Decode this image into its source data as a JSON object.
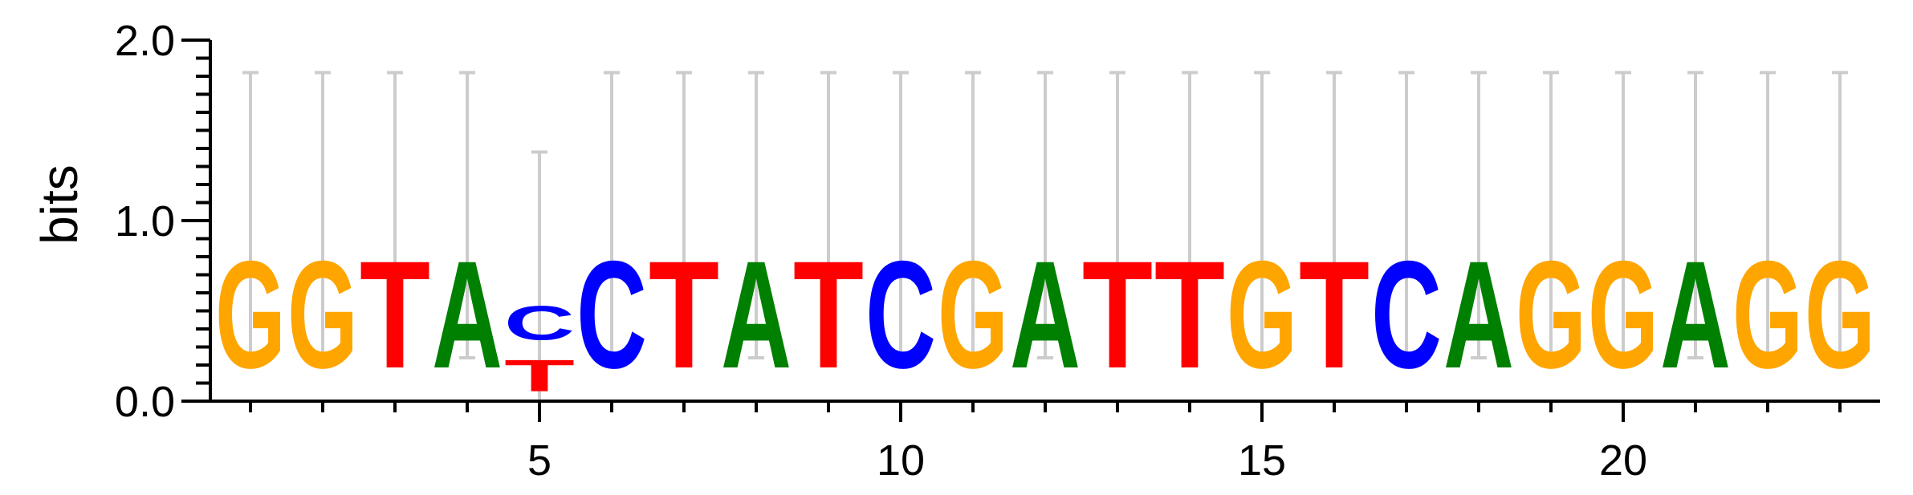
{
  "chart_data": {
    "type": "sequence-logo",
    "ylabel": "bits",
    "ylim": [
      0,
      2.0
    ],
    "y_ticks": [
      "0.0",
      "1.0",
      "2.0"
    ],
    "x_ticks": [
      5,
      10,
      15,
      20
    ],
    "colors": {
      "A": "#008000",
      "C": "#0000ff",
      "G": "#ffa500",
      "T": "#ff0000"
    },
    "error_bar_color": "#cccccc",
    "positions": [
      {
        "pos": 1,
        "letters": [
          {
            "base": "G",
            "bits": 0.95
          }
        ],
        "err": [
          0.24,
          1.82
        ]
      },
      {
        "pos": 2,
        "letters": [
          {
            "base": "G",
            "bits": 0.95
          }
        ],
        "err": [
          0.24,
          1.82
        ]
      },
      {
        "pos": 3,
        "letters": [
          {
            "base": "T",
            "bits": 0.95
          }
        ],
        "err": [
          0.24,
          1.82
        ]
      },
      {
        "pos": 4,
        "letters": [
          {
            "base": "A",
            "bits": 0.95
          }
        ],
        "err": [
          0.24,
          1.82
        ]
      },
      {
        "pos": 5,
        "letters": [
          {
            "base": "T",
            "bits": 0.28
          },
          {
            "base": "C",
            "bits": 0.3
          }
        ],
        "err": [
          0.0,
          1.38
        ]
      },
      {
        "pos": 6,
        "letters": [
          {
            "base": "C",
            "bits": 0.95
          }
        ],
        "err": [
          0.24,
          1.82
        ]
      },
      {
        "pos": 7,
        "letters": [
          {
            "base": "T",
            "bits": 0.95
          }
        ],
        "err": [
          0.24,
          1.82
        ]
      },
      {
        "pos": 8,
        "letters": [
          {
            "base": "A",
            "bits": 0.95
          }
        ],
        "err": [
          0.24,
          1.82
        ]
      },
      {
        "pos": 9,
        "letters": [
          {
            "base": "T",
            "bits": 0.95
          }
        ],
        "err": [
          0.24,
          1.82
        ]
      },
      {
        "pos": 10,
        "letters": [
          {
            "base": "C",
            "bits": 0.95
          }
        ],
        "err": [
          0.24,
          1.82
        ]
      },
      {
        "pos": 11,
        "letters": [
          {
            "base": "G",
            "bits": 0.95
          }
        ],
        "err": [
          0.24,
          1.82
        ]
      },
      {
        "pos": 12,
        "letters": [
          {
            "base": "A",
            "bits": 0.95
          }
        ],
        "err": [
          0.24,
          1.82
        ]
      },
      {
        "pos": 13,
        "letters": [
          {
            "base": "T",
            "bits": 0.95
          }
        ],
        "err": [
          0.24,
          1.82
        ]
      },
      {
        "pos": 14,
        "letters": [
          {
            "base": "T",
            "bits": 0.95
          }
        ],
        "err": [
          0.24,
          1.82
        ]
      },
      {
        "pos": 15,
        "letters": [
          {
            "base": "G",
            "bits": 0.95
          }
        ],
        "err": [
          0.24,
          1.82
        ]
      },
      {
        "pos": 16,
        "letters": [
          {
            "base": "T",
            "bits": 0.95
          }
        ],
        "err": [
          0.24,
          1.82
        ]
      },
      {
        "pos": 17,
        "letters": [
          {
            "base": "C",
            "bits": 0.95
          }
        ],
        "err": [
          0.24,
          1.82
        ]
      },
      {
        "pos": 18,
        "letters": [
          {
            "base": "A",
            "bits": 0.95
          }
        ],
        "err": [
          0.24,
          1.82
        ]
      },
      {
        "pos": 19,
        "letters": [
          {
            "base": "G",
            "bits": 0.95
          }
        ],
        "err": [
          0.24,
          1.82
        ]
      },
      {
        "pos": 20,
        "letters": [
          {
            "base": "G",
            "bits": 0.95
          }
        ],
        "err": [
          0.24,
          1.82
        ]
      },
      {
        "pos": 21,
        "letters": [
          {
            "base": "A",
            "bits": 0.95
          }
        ],
        "err": [
          0.24,
          1.82
        ]
      },
      {
        "pos": 22,
        "letters": [
          {
            "base": "G",
            "bits": 0.95
          }
        ],
        "err": [
          0.24,
          1.82
        ]
      },
      {
        "pos": 23,
        "letters": [
          {
            "base": "G",
            "bits": 0.95
          }
        ],
        "err": [
          0.24,
          1.82
        ]
      }
    ]
  }
}
